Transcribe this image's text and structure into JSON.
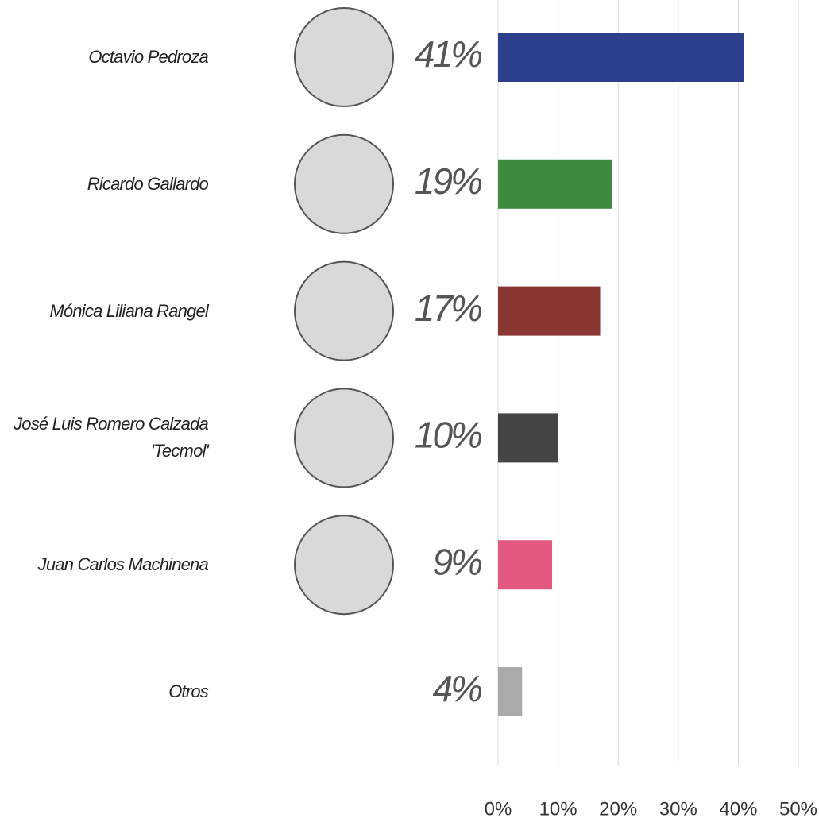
{
  "chart_data": {
    "type": "hbar",
    "categories": [
      "Octavio Pedroza",
      "Ricardo Gallardo",
      "Mónica Liliana Rangel",
      "José Luis Romero Calzada 'Tecmol'",
      "Juan Carlos Machinena",
      "Otros"
    ],
    "values": [
      41,
      19,
      17,
      10,
      9,
      4
    ],
    "value_labels": [
      "41%",
      "19%",
      "17%",
      "10%",
      "9%",
      "4%"
    ],
    "colors": [
      "#2b3f8c",
      "#3f8b3f",
      "#8a3632",
      "#444444",
      "#e2587f",
      "#aaaaaa"
    ],
    "xlim": [
      0,
      50
    ],
    "xticks": [
      {
        "value": 0,
        "label": "0%"
      },
      {
        "value": 10,
        "label": "10%"
      },
      {
        "value": 20,
        "label": "20%"
      },
      {
        "value": 30,
        "label": "30%"
      },
      {
        "value": 40,
        "label": "40%"
      },
      {
        "value": 50,
        "label": "50%"
      }
    ],
    "grid": true
  }
}
